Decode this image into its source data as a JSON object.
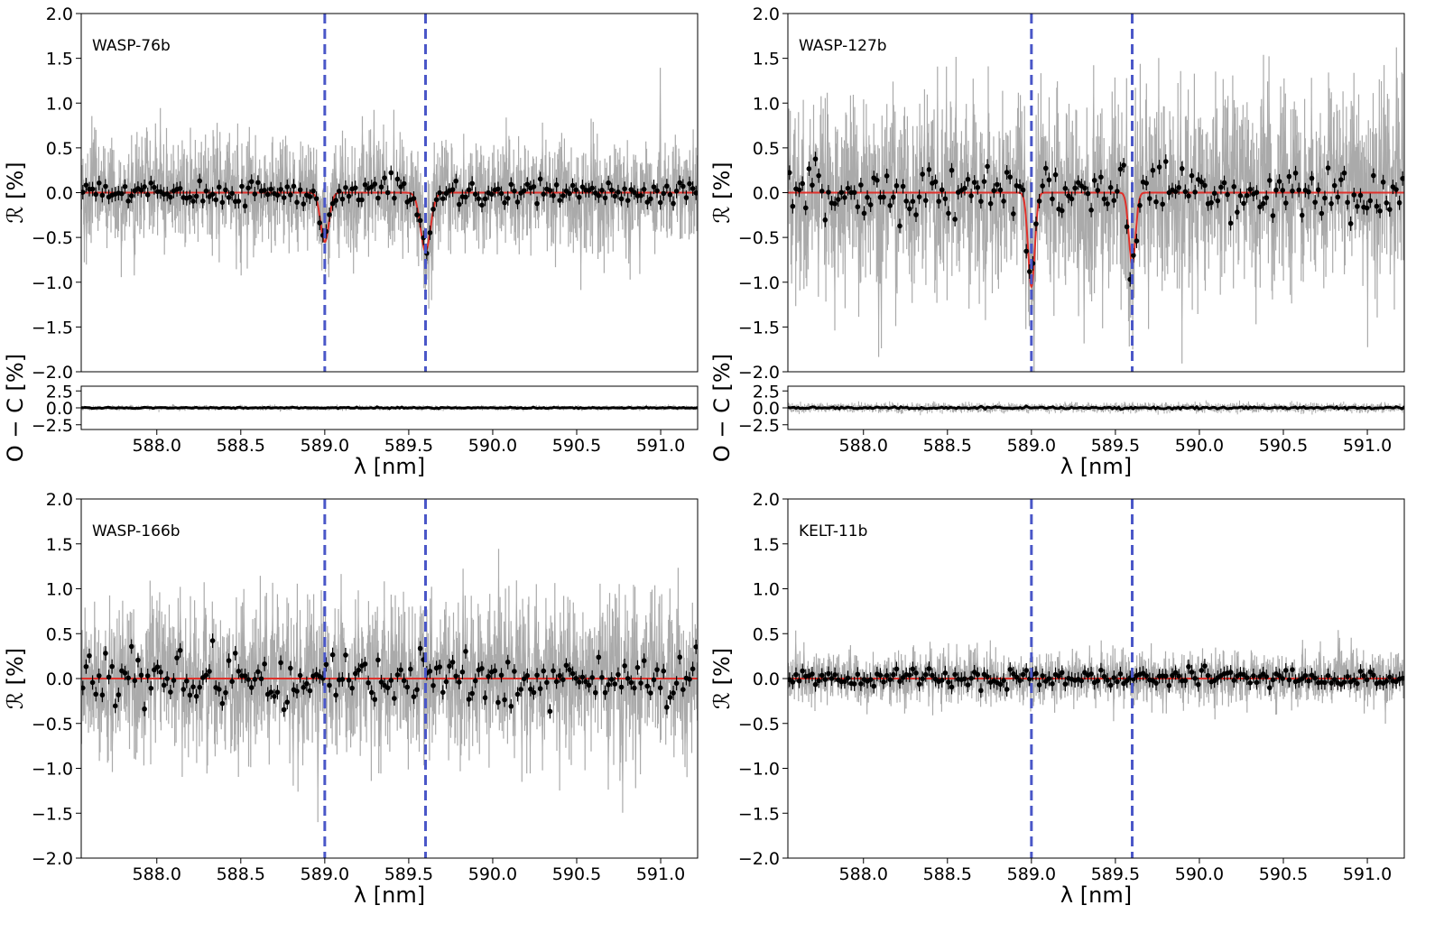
{
  "chart_data": [
    {
      "type": "line",
      "annotation": "WASP-76b",
      "xlabel": "λ [nm]",
      "ylabel": "ℛ [%]",
      "xlim": [
        587.55,
        591.22
      ],
      "ylim": [
        -2.0,
        2.0
      ],
      "xticks": [
        "588.0",
        "588.5",
        "589.0",
        "589.5",
        "590.0",
        "590.5",
        "591.0"
      ],
      "yticks": [
        "2.0",
        "1.5",
        "1.0",
        "0.5",
        "0.0",
        "−0.5",
        "−1.0",
        "−1.5",
        "−2.0"
      ],
      "reference_lines_x": [
        589.0,
        589.6
      ],
      "model_absorption": [
        {
          "center": 589.0,
          "depth": -0.55,
          "width": 0.025
        },
        {
          "center": 589.6,
          "depth": -0.65,
          "width": 0.03
        }
      ],
      "noise": {
        "raw_scatter": 0.25,
        "binned_scatter": 0.07
      },
      "residuals": {
        "ylabel": "O − C [%]",
        "ylim": [
          -3.2,
          3.2
        ],
        "yticks": [
          "2.5",
          "0.0",
          "−2.5"
        ],
        "scatter": 0.12
      }
    },
    {
      "type": "line",
      "annotation": "WASP-127b",
      "xlabel": "λ [nm]",
      "ylabel": "ℛ [%]",
      "xlim": [
        587.55,
        591.22
      ],
      "ylim": [
        -2.0,
        2.0
      ],
      "xticks": [
        "588.0",
        "588.5",
        "589.0",
        "589.5",
        "590.0",
        "590.5",
        "591.0"
      ],
      "yticks": [
        "2.0",
        "1.5",
        "1.0",
        "0.5",
        "0.0",
        "−0.5",
        "−1.0",
        "−1.5",
        "−2.0"
      ],
      "reference_lines_x": [
        589.0,
        589.6
      ],
      "model_absorption": [
        {
          "center": 589.0,
          "depth": -1.05,
          "width": 0.02
        },
        {
          "center": 589.6,
          "depth": -0.8,
          "width": 0.02
        }
      ],
      "noise": {
        "raw_scatter": 0.45,
        "binned_scatter": 0.15
      },
      "residuals": {
        "ylabel": "O − C [%]",
        "ylim": [
          -3.2,
          3.2
        ],
        "yticks": [
          "2.5",
          "0.0",
          "−2.5"
        ],
        "scatter": 0.25
      }
    },
    {
      "type": "line",
      "annotation": "WASP-166b",
      "xlabel": "λ [nm]",
      "ylabel": "ℛ [%]",
      "xlim": [
        587.55,
        591.22
      ],
      "ylim": [
        -2.0,
        2.0
      ],
      "xticks": [
        "588.0",
        "588.5",
        "589.0",
        "589.5",
        "590.0",
        "590.5",
        "591.0"
      ],
      "yticks": [
        "2.0",
        "1.5",
        "1.0",
        "0.5",
        "0.0",
        "−0.5",
        "−1.0",
        "−1.5",
        "−2.0"
      ],
      "reference_lines_x": [
        589.0,
        589.6
      ],
      "model_absorption": [],
      "noise": {
        "raw_scatter": 0.35,
        "binned_scatter": 0.15
      }
    },
    {
      "type": "line",
      "annotation": "KELT-11b",
      "xlabel": "λ [nm]",
      "ylabel": "ℛ [%]",
      "xlim": [
        587.55,
        591.22
      ],
      "ylim": [
        -2.0,
        2.0
      ],
      "xticks": [
        "588.0",
        "588.5",
        "589.0",
        "589.5",
        "590.0",
        "590.5",
        "591.0"
      ],
      "yticks": [
        "2.0",
        "1.5",
        "1.0",
        "0.5",
        "0.0",
        "−0.5",
        "−1.0",
        "−1.5",
        "−2.0"
      ],
      "reference_lines_x": [
        589.0,
        589.6
      ],
      "model_absorption": [],
      "noise": {
        "raw_scatter": 0.12,
        "binned_scatter": 0.05
      }
    }
  ],
  "colors": {
    "raw_data": "#aaaaaa",
    "binned_data": "#000000",
    "model": "#e0302a",
    "reference_line": "#4a57c8",
    "axes": "#000000"
  }
}
